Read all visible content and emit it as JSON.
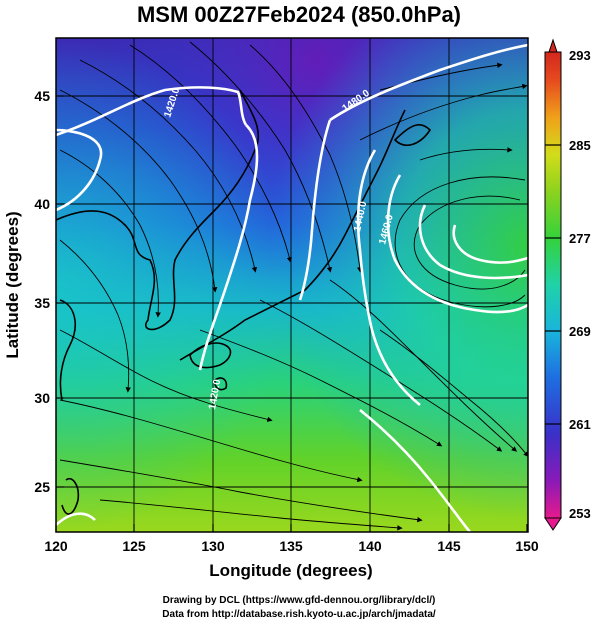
{
  "title": "MSM 00Z27Feb2024 (850.0hPa)",
  "xlabel": "Longitude (degrees)",
  "ylabel": "Latitude  (degrees)",
  "credits": [
    "Drawing by DCL (https://www.gfd-dennou.org/library/dcl/)",
    "Data from http://database.rish.kyoto-u.ac.jp/arch/jmadata/"
  ],
  "x_ticks": [
    "120",
    "125",
    "130",
    "135",
    "140",
    "145",
    "150"
  ],
  "y_ticks": [
    "45",
    "40",
    "35",
    "30",
    "25"
  ],
  "colorbar": {
    "ticks": [
      "293",
      "285",
      "277",
      "269",
      "261",
      "253"
    ],
    "min": 253,
    "max": 293,
    "colors": [
      "#e61a8c",
      "#8a1ab8",
      "#4a2fc8",
      "#2a3fd8",
      "#1e73e0",
      "#19b4dc",
      "#20d2b4",
      "#2ad27a",
      "#34d23c",
      "#73d21e",
      "#b8dc1a",
      "#e6c81a",
      "#f08c1a",
      "#e6461e",
      "#d2281e"
    ]
  },
  "chart_data": {
    "type": "heatmap",
    "field": "temperature (shaded) with streamlines and geopotential height contours",
    "x_range": [
      120,
      150
    ],
    "y_range": [
      22.5,
      47.5
    ],
    "contour_labels": [
      "1420.0",
      "1480.0",
      "1440.0",
      "1460.0",
      "1420.0"
    ]
  }
}
